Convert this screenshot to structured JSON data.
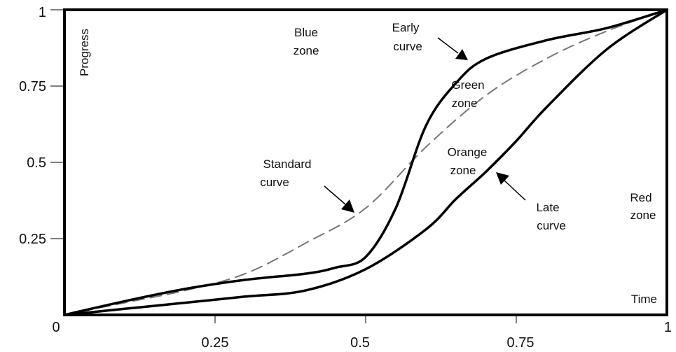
{
  "chart_data": {
    "type": "line",
    "xlabel": "Time",
    "ylabel": "Progress",
    "xlim": [
      0,
      1
    ],
    "ylim": [
      0,
      1
    ],
    "grid": false,
    "x_ticks": [
      "0.25",
      "0.5",
      "0.75",
      "1"
    ],
    "y_ticks": [
      "0.25",
      "0.5",
      "0.75",
      "1"
    ],
    "origin_label": "0",
    "series": [
      {
        "name": "Standard curve",
        "style": "dashed",
        "x": [
          0,
          0.1,
          0.2,
          0.3,
          0.4,
          0.5,
          0.6,
          0.7,
          0.8,
          0.9,
          1.0
        ],
        "y": [
          0,
          0.04,
          0.08,
          0.135,
          0.235,
          0.35,
          0.55,
          0.72,
          0.84,
          0.93,
          1.0
        ]
      },
      {
        "name": "Early curve",
        "style": "solid",
        "x": [
          0,
          0.1,
          0.2,
          0.3,
          0.4,
          0.45,
          0.5,
          0.55,
          0.6,
          0.65,
          0.7,
          0.8,
          0.9,
          1.0
        ],
        "y": [
          0,
          0.045,
          0.085,
          0.115,
          0.135,
          0.155,
          0.19,
          0.35,
          0.62,
          0.76,
          0.84,
          0.9,
          0.94,
          1.0
        ]
      },
      {
        "name": "Late curve",
        "style": "solid",
        "x": [
          0,
          0.1,
          0.2,
          0.3,
          0.4,
          0.5,
          0.6,
          0.65,
          0.7,
          0.75,
          0.8,
          0.9,
          1.0
        ],
        "y": [
          0,
          0.02,
          0.04,
          0.06,
          0.08,
          0.15,
          0.28,
          0.38,
          0.47,
          0.57,
          0.68,
          0.87,
          1.0
        ]
      }
    ],
    "annotations": [
      {
        "text": "Blue zone",
        "lines": [
          "Blue",
          "zone"
        ]
      },
      {
        "text": "Early curve",
        "lines": [
          "Early",
          "curve"
        ]
      },
      {
        "text": "Green zone",
        "lines": [
          "Green",
          "zone"
        ]
      },
      {
        "text": "Standard curve",
        "lines": [
          "Standard",
          "curve"
        ]
      },
      {
        "text": "Orange zone",
        "lines": [
          "Orange",
          "zone"
        ]
      },
      {
        "text": "Late curve",
        "lines": [
          "Late",
          "curve"
        ]
      },
      {
        "text": "Red zone",
        "lines": [
          "Red",
          "zone"
        ]
      }
    ],
    "colors": {
      "line": "#000000",
      "dash": "#777777"
    }
  }
}
